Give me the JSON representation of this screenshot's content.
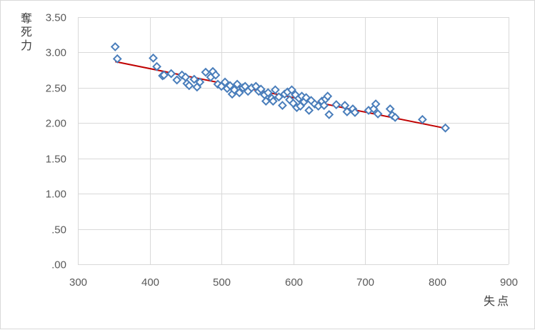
{
  "chart_data": {
    "type": "scatter",
    "title": "",
    "xlabel": "失点",
    "ylabel": "奪死力",
    "xlim": [
      300,
      900
    ],
    "ylim": [
      0,
      3.5
    ],
    "x_ticks": [
      300,
      400,
      500,
      600,
      700,
      800,
      900
    ],
    "x_tick_labels": [
      "300",
      "400",
      "500",
      "600",
      "700",
      "800",
      "900"
    ],
    "y_ticks": [
      0,
      0.5,
      1.0,
      1.5,
      2.0,
      2.5,
      3.0,
      3.5
    ],
    "y_tick_labels": [
      ".00",
      ".50",
      "1.00",
      "1.50",
      "2.00",
      "2.50",
      "3.00",
      "3.50"
    ],
    "grid": true,
    "legend": "none",
    "marker": "diamond",
    "marker_color": "#4a7ebb",
    "trendline": {
      "type": "linear",
      "x": [
        352,
        815
      ],
      "y": [
        2.87,
        1.92
      ],
      "color": "#c00000"
    },
    "points": [
      [
        352,
        3.08
      ],
      [
        355,
        2.91
      ],
      [
        405,
        2.92
      ],
      [
        410,
        2.8
      ],
      [
        418,
        2.67
      ],
      [
        420,
        2.68
      ],
      [
        430,
        2.7
      ],
      [
        438,
        2.61
      ],
      [
        445,
        2.68
      ],
      [
        450,
        2.65
      ],
      [
        452,
        2.56
      ],
      [
        455,
        2.53
      ],
      [
        462,
        2.62
      ],
      [
        466,
        2.51
      ],
      [
        470,
        2.58
      ],
      [
        478,
        2.72
      ],
      [
        485,
        2.65
      ],
      [
        488,
        2.73
      ],
      [
        492,
        2.68
      ],
      [
        495,
        2.55
      ],
      [
        500,
        2.52
      ],
      [
        505,
        2.58
      ],
      [
        508,
        2.49
      ],
      [
        512,
        2.53
      ],
      [
        515,
        2.41
      ],
      [
        518,
        2.47
      ],
      [
        522,
        2.55
      ],
      [
        525,
        2.43
      ],
      [
        530,
        2.5
      ],
      [
        533,
        2.52
      ],
      [
        537,
        2.45
      ],
      [
        542,
        2.5
      ],
      [
        548,
        2.52
      ],
      [
        552,
        2.45
      ],
      [
        555,
        2.48
      ],
      [
        560,
        2.4
      ],
      [
        562,
        2.31
      ],
      [
        565,
        2.43
      ],
      [
        570,
        2.35
      ],
      [
        572,
        2.31
      ],
      [
        575,
        2.47
      ],
      [
        580,
        2.37
      ],
      [
        585,
        2.25
      ],
      [
        588,
        2.41
      ],
      [
        592,
        2.44
      ],
      [
        595,
        2.33
      ],
      [
        598,
        2.47
      ],
      [
        600,
        2.28
      ],
      [
        603,
        2.4
      ],
      [
        605,
        2.22
      ],
      [
        608,
        2.35
      ],
      [
        610,
        2.24
      ],
      [
        612,
        2.38
      ],
      [
        615,
        2.3
      ],
      [
        618,
        2.36
      ],
      [
        622,
        2.18
      ],
      [
        625,
        2.32
      ],
      [
        630,
        2.27
      ],
      [
        635,
        2.24
      ],
      [
        640,
        2.31
      ],
      [
        643,
        2.25
      ],
      [
        645,
        2.34
      ],
      [
        648,
        2.38
      ],
      [
        650,
        2.12
      ],
      [
        660,
        2.26
      ],
      [
        672,
        2.25
      ],
      [
        675,
        2.16
      ],
      [
        683,
        2.2
      ],
      [
        686,
        2.15
      ],
      [
        705,
        2.18
      ],
      [
        712,
        2.2
      ],
      [
        715,
        2.27
      ],
      [
        718,
        2.13
      ],
      [
        735,
        2.2
      ],
      [
        738,
        2.11
      ],
      [
        742,
        2.08
      ],
      [
        780,
        2.05
      ],
      [
        812,
        1.93
      ]
    ]
  }
}
